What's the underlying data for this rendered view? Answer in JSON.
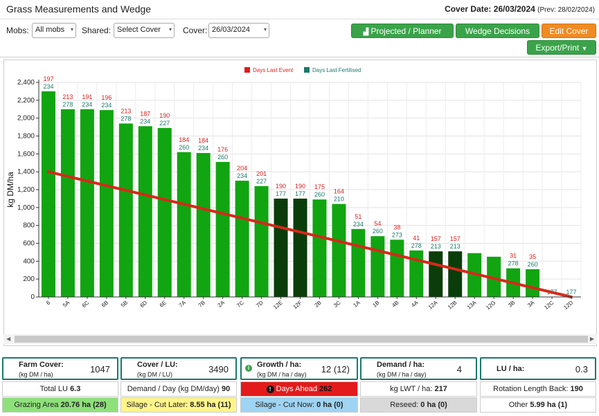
{
  "header": {
    "title": "Grass Measurements and Wedge",
    "cover_date_label": "Cover Date:",
    "cover_date": "26/03/2024",
    "prev_date": "(Prev: 28/02/2024)"
  },
  "toolbar": {
    "mobs_label": "Mobs:",
    "mobs_value": "All mobs",
    "shared_label": "Shared:",
    "shared_value": "Select Cover",
    "cover_label": "Cover:",
    "cover_value": "26/03/2024",
    "projected_label": "Projected / Planner",
    "wedge_label": "Wedge Decisions",
    "edit_label": "Edit Cover",
    "export_label": "Export/Print",
    "icons": {
      "projected": "area-chart-icon",
      "export": "caret-down-icon"
    },
    "colors": {
      "green": "#3aa34a",
      "orange": "#ef8b22"
    }
  },
  "chart_data": {
    "type": "bar",
    "ylabel": "kg DM/ha",
    "ylim": [
      0,
      2400
    ],
    "yticks": [
      0,
      200,
      400,
      600,
      800,
      1000,
      1200,
      1400,
      1600,
      1800,
      2000,
      2200,
      2400
    ],
    "yticks_labels": [
      "0",
      "200",
      "400",
      "600",
      "800",
      "1,000",
      "1,200",
      "1,400",
      "1,600",
      "1,800",
      "2,000",
      "2,200",
      "2,400"
    ],
    "legend": [
      {
        "name": "Days Last Event",
        "color": "#e31b1b"
      },
      {
        "name": "Days Last Fertilised",
        "color": "#1a7a6b"
      }
    ],
    "legend_placement": "top-center",
    "categories": [
      "6",
      "5A",
      "6C",
      "6B",
      "5B",
      "6D",
      "6E",
      "7A",
      "7B",
      "2A",
      "7C",
      "7D",
      "12E",
      "12F",
      "2B",
      "3C",
      "1A",
      "1B",
      "4B",
      "4A",
      "12A",
      "12B",
      "13A",
      "12G",
      "3B",
      "3A",
      "12C",
      "12D"
    ],
    "values": [
      2300,
      2100,
      2100,
      2090,
      1940,
      1910,
      1890,
      1620,
      1610,
      1510,
      1300,
      1240,
      1100,
      1100,
      1090,
      1040,
      760,
      680,
      640,
      520,
      510,
      510,
      490,
      450,
      320,
      310,
      0,
      0
    ],
    "days_last_event": [
      "197",
      "213",
      "191",
      "196",
      "213",
      "187",
      "190",
      "184",
      "184",
      "176",
      "204",
      "201",
      "190",
      "190",
      "175",
      "164",
      "51",
      "54",
      "38",
      "41",
      "157",
      "157",
      "",
      "",
      "31",
      "35",
      "",
      ""
    ],
    "days_last_fertilised": [
      "234",
      "278",
      "234",
      "234",
      "278",
      "234",
      "227",
      "260",
      "234",
      "260",
      "234",
      "227",
      "177",
      "177",
      "260",
      "210",
      "234",
      "260",
      "273",
      "278",
      "213",
      "213",
      "",
      "",
      "278",
      "260",
      "177",
      "177"
    ],
    "bar_colors": [
      "#11a511",
      "#11a511",
      "#11a511",
      "#11a511",
      "#11a511",
      "#11a511",
      "#11a511",
      "#11a511",
      "#11a511",
      "#11a511",
      "#11a511",
      "#11a511",
      "#0a3d0a",
      "#0a3d0a",
      "#11a511",
      "#11a511",
      "#11a511",
      "#11a511",
      "#11a511",
      "#11a511",
      "#0a3d0a",
      "#0a3d0a",
      "#11a511",
      "#11a511",
      "#11a511",
      "#11a511",
      "#11a511",
      "#11a511"
    ],
    "wedge_line": {
      "start": 1400,
      "end": 0,
      "color": "#d42a1a"
    },
    "grid": true
  },
  "stats": {
    "farm_cover": {
      "title": "Farm Cover:",
      "sub": "(kg DM / ha)",
      "value": "1047"
    },
    "cover_lu": {
      "title": "Cover / LU:",
      "sub": "(kg DM / LU)",
      "value": "3490"
    },
    "growth": {
      "title": "Growth / ha:",
      "sub": "(kg DM / ha / day)",
      "value": "12 (12)",
      "icon": "info-icon"
    },
    "demand": {
      "title": "Demand / ha:",
      "sub": "(kg DM / ha / day)",
      "value": "4"
    },
    "lu_ha": {
      "title": "LU / ha:",
      "value": "0.3"
    },
    "total_lu": {
      "label": "Total LU",
      "value": "6.3"
    },
    "demand_day": {
      "label": "Demand / Day (kg DM/day)",
      "value": "90"
    },
    "days_ahead": {
      "label": "Days Ahead",
      "value": "262",
      "icon": "warning-icon"
    },
    "kg_lwt": {
      "label": "kg LWT / ha:",
      "value": "217"
    },
    "rotation": {
      "label": "Rotation Length Back:",
      "value": "190"
    },
    "grazing": {
      "label": "Grazing Area",
      "value": "20.76 ha (28)"
    },
    "silage_later": {
      "label": "Silage - Cut Later:",
      "value": "8.55 ha (11)"
    },
    "silage_now": {
      "label": "Silage - Cut Now:",
      "value": "0 ha (0)"
    },
    "reseed": {
      "label": "Reseed:",
      "value": "0 ha (0)"
    },
    "other": {
      "label": "Other",
      "value": "5.99 ha (1)"
    }
  }
}
